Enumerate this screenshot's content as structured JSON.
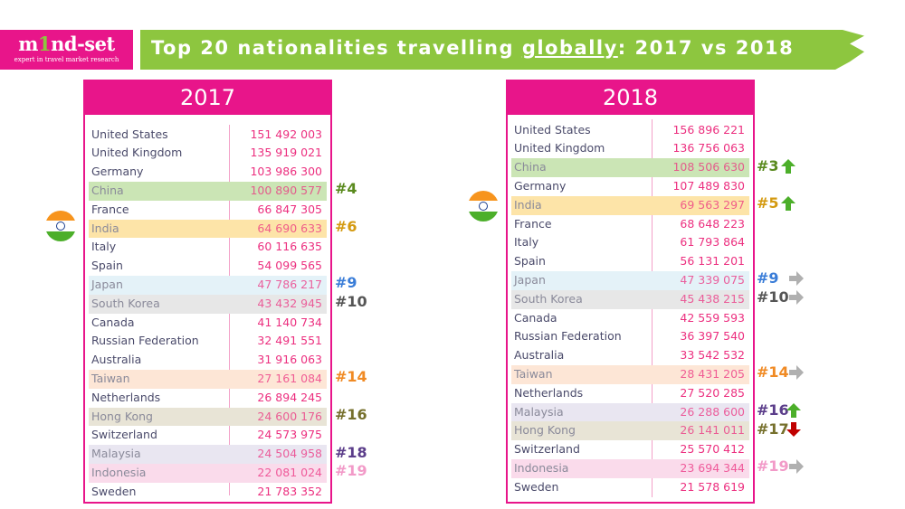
{
  "logo": {
    "brand_pre": "m",
    "brand_one": "1",
    "brand_post": "nd-set",
    "tagline": "expert in travel market research"
  },
  "title": {
    "pre": "Top 20 nationalities travelling ",
    "underlined": "globally",
    "post": ": 2017 vs 2018"
  },
  "colors": {
    "accent": "#e8158a",
    "banner": "#8dc63f"
  },
  "highlights": {
    "china": {
      "bg": "#cbe5b5",
      "rank": "#5a8a1e"
    },
    "india": {
      "bg": "#fde4a8",
      "rank": "#d49a10"
    },
    "japan": {
      "bg": "#e4f2f8",
      "rank": "#3a7dd8"
    },
    "korea": {
      "bg": "#e7e7e7",
      "rank": "#555555"
    },
    "taiwan": {
      "bg": "#fde6d6",
      "rank": "#f08a24"
    },
    "hongkong": {
      "bg": "#e8e4d6",
      "rank": "#76702c"
    },
    "malaysia": {
      "bg": "#e9e6f1",
      "rank": "#5b3d8a"
    },
    "indonesia": {
      "bg": "#fadbeb",
      "rank": "#f29ac8"
    }
  },
  "tables": [
    {
      "year": "2017",
      "rows": [
        {
          "country": "United States",
          "value": "151 492 003"
        },
        {
          "country": "United Kingdom",
          "value": "135 919 021"
        },
        {
          "country": "Germany",
          "value": "103 986 300"
        },
        {
          "country": "China",
          "value": "100 890 577",
          "hl": "china",
          "rank": "#4"
        },
        {
          "country": "France",
          "value": "66 847 305"
        },
        {
          "country": "India",
          "value": "64 690 633",
          "hl": "india",
          "rank": "#6"
        },
        {
          "country": "Italy",
          "value": "60 116 635"
        },
        {
          "country": "Spain",
          "value": "54 099 565"
        },
        {
          "country": "Japan",
          "value": "47 786 217",
          "hl": "japan",
          "rank": "#9"
        },
        {
          "country": "South Korea",
          "value": "43 432 945",
          "hl": "korea",
          "rank": "#10"
        },
        {
          "country": "Canada",
          "value": "41 140 734"
        },
        {
          "country": "Russian Federation",
          "value": "32 491 551"
        },
        {
          "country": "Australia",
          "value": "31 916 063"
        },
        {
          "country": "Taiwan",
          "value": "27 161 084",
          "hl": "taiwan",
          "rank": "#14"
        },
        {
          "country": "Netherlands",
          "value": "26 894 245"
        },
        {
          "country": "Hong Kong",
          "value": "24 600 176",
          "hl": "hongkong",
          "rank": "#16"
        },
        {
          "country": "Switzerland",
          "value": "24 573 975"
        },
        {
          "country": "Malaysia",
          "value": "24 504 958",
          "hl": "malaysia",
          "rank": "#18"
        },
        {
          "country": "Indonesia",
          "value": "22 081 024",
          "hl": "indonesia",
          "rank": "#19"
        },
        {
          "country": "Sweden",
          "value": "21 783 352"
        }
      ]
    },
    {
      "year": "2018",
      "rows": [
        {
          "country": "United States",
          "value": "156 896 221"
        },
        {
          "country": "United Kingdom",
          "value": "136 756 063"
        },
        {
          "country": "China",
          "value": "108 506 630",
          "hl": "china",
          "rank": "#3",
          "arrow": "up"
        },
        {
          "country": "Germany",
          "value": "107 489 830"
        },
        {
          "country": "India",
          "value": "69 563 297",
          "hl": "india",
          "rank": "#5",
          "arrow": "up"
        },
        {
          "country": "France",
          "value": "68 648 223"
        },
        {
          "country": "Italy",
          "value": "61 793 864"
        },
        {
          "country": "Spain",
          "value": "56 131 201"
        },
        {
          "country": "Japan",
          "value": "47 339 075",
          "hl": "japan",
          "rank": "#9",
          "arrow": "same"
        },
        {
          "country": "South Korea",
          "value": "45 438 215",
          "hl": "korea",
          "rank": "#10",
          "arrow": "same"
        },
        {
          "country": "Canada",
          "value": "42 559 593"
        },
        {
          "country": "Russian Federation",
          "value": "36 397 540"
        },
        {
          "country": "Australia",
          "value": "33 542 532"
        },
        {
          "country": "Taiwan",
          "value": "28 431 205",
          "hl": "taiwan",
          "rank": "#14",
          "arrow": "same"
        },
        {
          "country": "Netherlands",
          "value": "27 520 285"
        },
        {
          "country": "Malaysia",
          "value": "26 288 600",
          "hl": "malaysia",
          "rank": "#16",
          "arrow": "up"
        },
        {
          "country": "Hong Kong",
          "value": "26 141 011",
          "hl": "hongkong",
          "rank": "#17",
          "arrow": "down"
        },
        {
          "country": "Switzerland",
          "value": "25 570 412"
        },
        {
          "country": "Indonesia",
          "value": "23 694 344",
          "hl": "indonesia",
          "rank": "#19",
          "arrow": "same"
        },
        {
          "country": "Sweden",
          "value": "21 578 619"
        }
      ]
    }
  ]
}
